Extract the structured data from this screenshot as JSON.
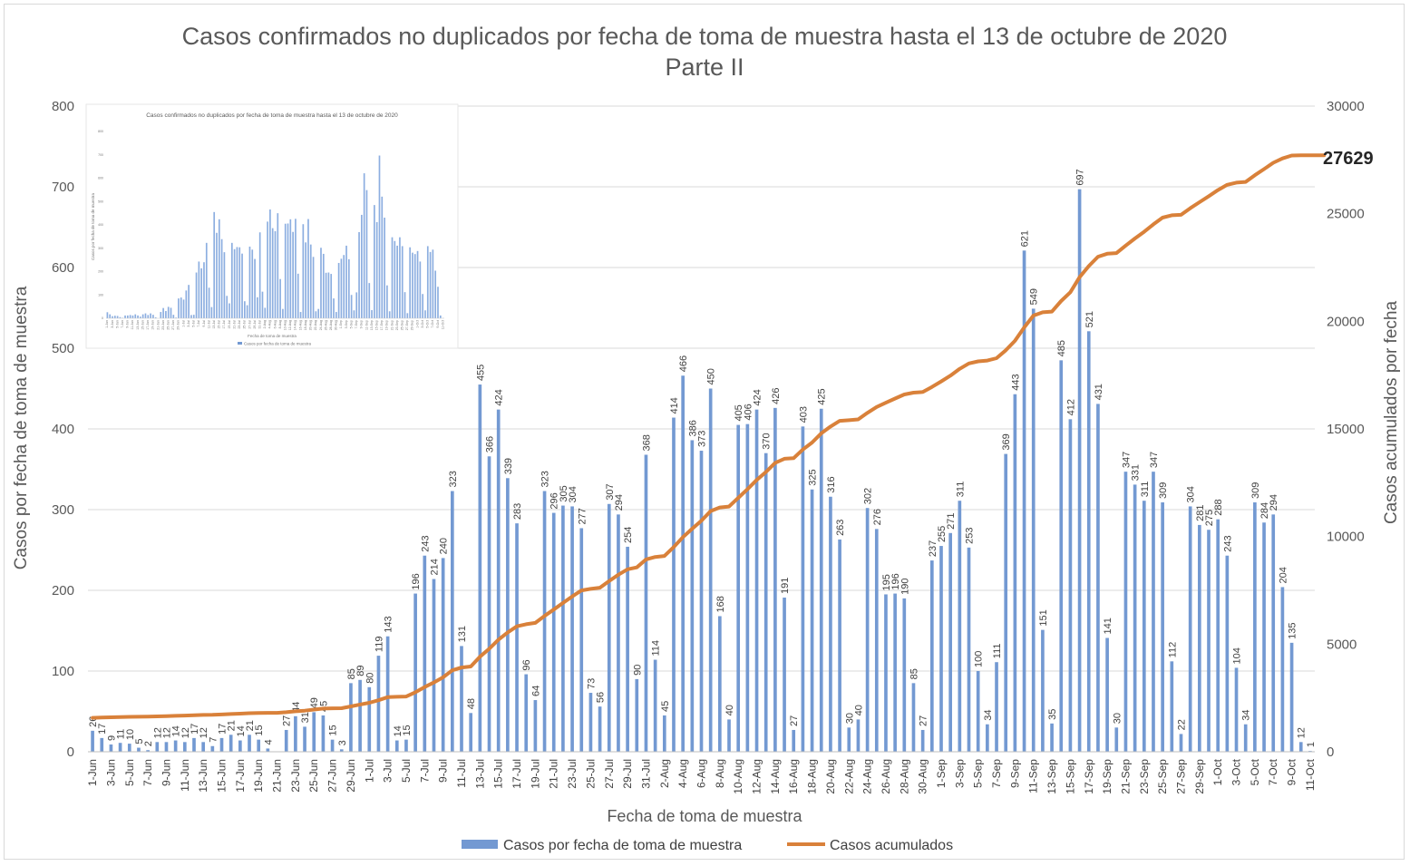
{
  "chart_data": {
    "type": "bar",
    "title": "Casos confirmados no duplicados por fecha de toma de muestra hasta el 13 de octubre de 2020",
    "subtitle": "Parte II",
    "xlabel": "Fecha de toma de muestra",
    "ylabel": "Casos por fecha de toma de muestra",
    "ylabel_right": "Casos acumulados por fecha",
    "ylim": [
      0,
      800
    ],
    "ylim_right": [
      0,
      30000
    ],
    "yticks": [
      "0",
      "100",
      "200",
      "300",
      "400",
      "500",
      "600",
      "700",
      "800"
    ],
    "yticks_right": [
      "0",
      "5000",
      "10000",
      "15000",
      "20000",
      "25000",
      "30000"
    ],
    "x_tick_labels": [
      "1-Jun",
      "3-Jun",
      "5-Jun",
      "7-Jun",
      "9-Jun",
      "11-Jun",
      "13-Jun",
      "15-Jun",
      "17-Jun",
      "19-Jun",
      "21-Jun",
      "23-Jun",
      "25-Jun",
      "27-Jun",
      "29-Jun",
      "1-Jul",
      "3-Jul",
      "5-Jul",
      "7-Jul",
      "9-Jul",
      "11-Jul",
      "13-Jul",
      "15-Jul",
      "17-Jul",
      "19-Jul",
      "21-Jul",
      "23-Jul",
      "25-Jul",
      "27-Jul",
      "29-Jul",
      "31-Jul",
      "2-Aug",
      "4-Aug",
      "6-Aug",
      "8-Aug",
      "10-Aug",
      "12-Aug",
      "14-Aug",
      "16-Aug",
      "18-Aug",
      "20-Aug",
      "22-Aug",
      "24-Aug",
      "26-Aug",
      "28-Aug",
      "30-Aug",
      "1-Sep",
      "3-Sep",
      "5-Sep",
      "7-Sep",
      "9-Sep",
      "11-Sep",
      "13-Sep",
      "15-Sep",
      "17-Sep",
      "19-Sep",
      "21-Sep",
      "23-Sep",
      "25-Sep",
      "27-Sep",
      "29-Sep",
      "1-Oct",
      "3-Oct",
      "5-Oct",
      "7-Oct",
      "9-Oct",
      "11-Oct"
    ],
    "values": [
      26,
      17,
      9,
      11,
      10,
      5,
      2,
      12,
      12,
      14,
      12,
      17,
      12,
      7,
      17,
      21,
      14,
      21,
      15,
      4,
      0,
      27,
      44,
      31,
      49,
      45,
      15,
      3,
      85,
      89,
      80,
      119,
      143,
      14,
      15,
      196,
      243,
      214,
      240,
      323,
      131,
      48,
      455,
      366,
      424,
      339,
      283,
      96,
      64,
      323,
      296,
      305,
      304,
      277,
      73,
      56,
      307,
      294,
      254,
      90,
      368,
      114,
      45,
      414,
      466,
      386,
      373,
      450,
      168,
      40,
      405,
      406,
      424,
      370,
      426,
      191,
      27,
      403,
      325,
      425,
      316,
      263,
      30,
      40,
      302,
      276,
      195,
      196,
      190,
      85,
      27,
      237,
      255,
      271,
      311,
      253,
      100,
      34,
      111,
      369,
      443,
      621,
      549,
      151,
      35,
      485,
      412,
      697,
      521,
      431,
      141,
      30,
      347,
      331,
      311,
      347,
      309,
      112,
      22,
      304,
      281,
      275,
      288,
      243,
      104,
      34,
      309,
      284,
      294,
      204,
      135,
      12,
      1
    ],
    "value_labels": [
      "26",
      "17",
      "9",
      "11",
      "10",
      "5",
      "2",
      "12",
      "12",
      "14",
      "12",
      "17",
      "12",
      "7",
      "17",
      "21",
      "14",
      "21",
      "15",
      "4",
      "",
      "27",
      "44",
      "31",
      "49",
      "45",
      "15",
      "3",
      "85",
      "89",
      "80",
      "119",
      "143",
      "14",
      "15",
      "196",
      "243",
      "214",
      "240",
      "323",
      "131",
      "48",
      "455",
      "366",
      "424",
      "339",
      "283",
      "96",
      "64",
      "323",
      "296",
      "305",
      "304",
      "277",
      "73",
      "56",
      "307",
      "294",
      "254",
      "90",
      "368",
      "114",
      "45",
      "414",
      "466",
      "386",
      "373",
      "450",
      "168",
      "40",
      "405",
      "406",
      "424",
      "370",
      "426",
      "191",
      "27",
      "403",
      "325",
      "425",
      "316",
      "263",
      "30",
      "40",
      "302",
      "276",
      "195",
      "196",
      "190",
      "85",
      "27",
      "237",
      "255",
      "271",
      "311",
      "253",
      "100",
      "34",
      "111",
      "369",
      "443",
      "621",
      "549",
      "151",
      "35",
      "485",
      "412",
      "697",
      "521",
      "431",
      "141",
      "30",
      "347",
      "331",
      "311",
      "347",
      "309",
      "112",
      "22",
      "304",
      "281",
      "275",
      "288",
      "243",
      "104",
      "34",
      "309",
      "284",
      "294",
      "204",
      "135",
      "12",
      "1"
    ],
    "series": [
      {
        "name": "Casos por fecha de toma de muestra",
        "type": "bar",
        "axis": "left",
        "color": "#7399d2"
      },
      {
        "name": "Casos acumulados",
        "type": "line",
        "axis": "right",
        "color": "#d9813a",
        "start_value": 1550
      }
    ],
    "cumulative_end_label": "27629",
    "legend": "bottom",
    "grid": true,
    "inset": {
      "title": "Casos confirmados no duplicados por fecha de toma de muestra hasta el 13 de octubre de 2020",
      "xlabel": "Fecha de toma de muestra",
      "ylabel": "Casos por fecha de toma de muestra",
      "legend": "Casos por fecha de toma de muestra",
      "yticks": [
        "0",
        "100",
        "200",
        "300",
        "400",
        "500",
        "600",
        "700",
        "800"
      ]
    }
  }
}
